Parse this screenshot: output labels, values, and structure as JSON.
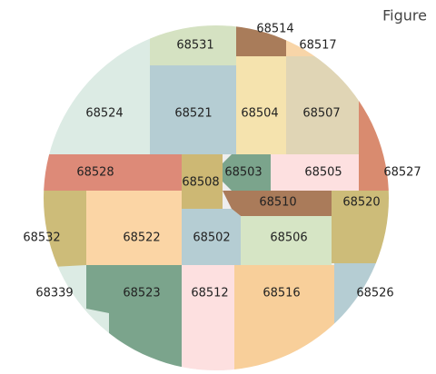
{
  "title": "Figure",
  "regions": [
    {
      "label": "68531"
    },
    {
      "label": "68514"
    },
    {
      "label": "68517"
    },
    {
      "label": "68524"
    },
    {
      "label": "68521"
    },
    {
      "label": "68504"
    },
    {
      "label": "68507"
    },
    {
      "label": "68527"
    },
    {
      "label": "68528"
    },
    {
      "label": "68508"
    },
    {
      "label": "68503"
    },
    {
      "label": "68505"
    },
    {
      "label": "68510"
    },
    {
      "label": "68520"
    },
    {
      "label": "68532"
    },
    {
      "label": "68522"
    },
    {
      "label": "68502"
    },
    {
      "label": "68506"
    },
    {
      "label": "68339"
    },
    {
      "label": "68523"
    },
    {
      "label": "68512"
    },
    {
      "label": "68516"
    },
    {
      "label": "68526"
    }
  ]
}
